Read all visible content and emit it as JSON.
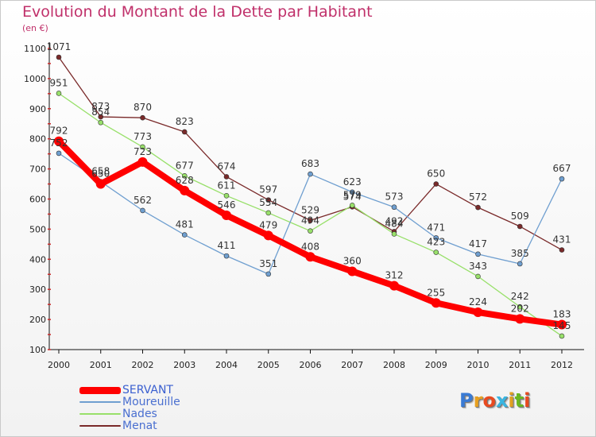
{
  "title": "Evolution du Montant de la Dette par Habitant",
  "subtitle": "(en €)",
  "chart_data": {
    "type": "line",
    "x": [
      "2000",
      "2001",
      "2002",
      "2003",
      "2004",
      "2005",
      "2006",
      "2007",
      "2008",
      "2009",
      "2010",
      "2011",
      "2012"
    ],
    "ylim": [
      100,
      1100
    ],
    "yticks": [
      100,
      200,
      300,
      400,
      500,
      600,
      700,
      800,
      900,
      1000,
      1100
    ],
    "grid": false,
    "legend_position": "bottom-left",
    "series": [
      {
        "name": "SERVANT",
        "color": "#ff0000",
        "values": [
          792,
          650,
          723,
          628,
          546,
          479,
          408,
          360,
          312,
          255,
          224,
          202,
          183
        ]
      },
      {
        "name": "Moureuille",
        "color": "#6f9fd0",
        "values": [
          752,
          658,
          562,
          481,
          411,
          351,
          683,
          623,
          573,
          471,
          417,
          385,
          667
        ]
      },
      {
        "name": "Nades",
        "color": "#98e06a",
        "values": [
          951,
          854,
          773,
          677,
          611,
          554,
          494,
          579,
          484,
          423,
          343,
          242,
          145
        ]
      },
      {
        "name": "Menat",
        "color": "#7a2a2a",
        "values": [
          1071,
          873,
          870,
          823,
          674,
          597,
          529,
          574,
          492,
          650,
          572,
          509,
          431
        ]
      }
    ],
    "data_labels": [
      [
        "792",
        "650",
        "723",
        "628",
        "546",
        "479",
        "408",
        "360",
        "312",
        "255",
        "224",
        "202",
        "183"
      ],
      [
        "752",
        "658",
        "562",
        "481",
        "411",
        "351",
        "683",
        "623",
        "573",
        "471",
        "417",
        "385",
        "667"
      ],
      [
        "951",
        "854",
        "773",
        "677",
        "611",
        "554",
        "494",
        "579",
        "484",
        "423",
        "343",
        "242",
        "145"
      ],
      [
        "1071",
        "873",
        "870",
        "823",
        "674",
        "597",
        "529",
        "574",
        "492",
        "650",
        "572",
        "509",
        "431"
      ]
    ]
  },
  "logo": {
    "text": "Proxiti",
    "colors": [
      "#3a7bd5",
      "#e8a020",
      "#e84a20",
      "#3ab5e0",
      "#e0a020",
      "#6ab820",
      "#e84a20"
    ]
  }
}
